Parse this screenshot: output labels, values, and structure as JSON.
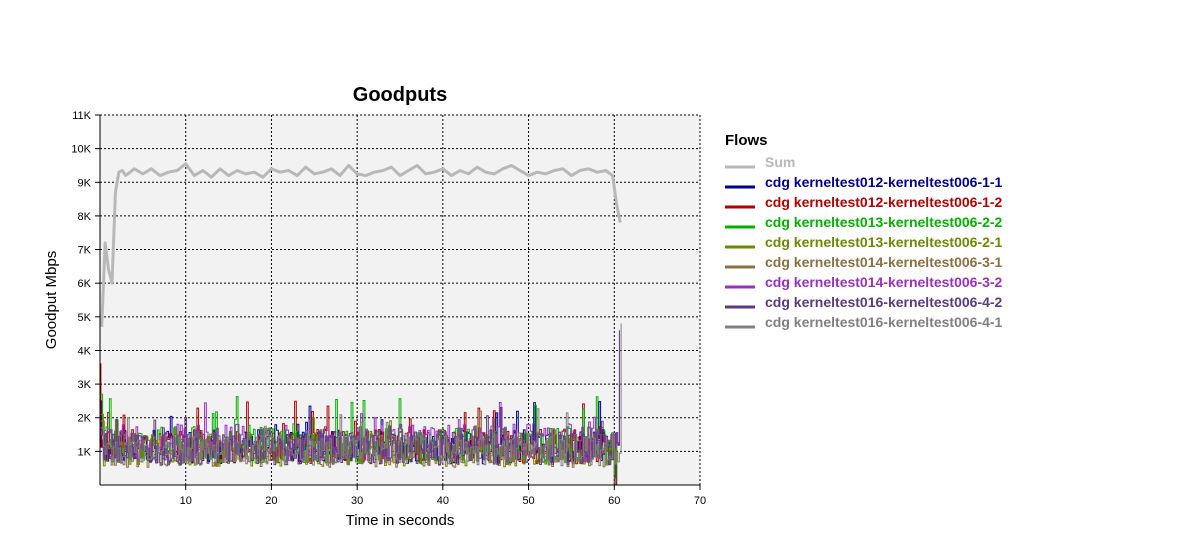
{
  "chart_data": {
    "type": "line",
    "title": "Goodputs",
    "xlabel": "Time in seconds",
    "ylabel": "Goodput Mbps",
    "xlim": [
      0,
      70
    ],
    "ylim": [
      0,
      11000
    ],
    "x_ticks": [
      10,
      20,
      30,
      40,
      50,
      60,
      70
    ],
    "x_tick_labels": [
      "10",
      "20",
      "30",
      "40",
      "50",
      "60",
      "70"
    ],
    "y_ticks": [
      1000,
      2000,
      3000,
      4000,
      5000,
      6000,
      7000,
      8000,
      9000,
      10000,
      11000
    ],
    "y_tick_labels": [
      "1K",
      "2K",
      "3K",
      "4K",
      "5K",
      "6K",
      "7K",
      "8K",
      "9K",
      "10K",
      "11K"
    ],
    "grid": true,
    "legend_title": "Flows",
    "legend_position": "right",
    "series": [
      {
        "name": "Sum",
        "color": "#b8b8b8",
        "x": [
          0.2,
          0.6,
          1.0,
          1.4,
          1.8,
          2.2,
          2.6,
          3.0,
          4.0,
          5.0,
          6.0,
          7.0,
          8.0,
          9.0,
          10.0,
          11.0,
          12.0,
          13.0,
          14.0,
          15.0,
          16.0,
          17.0,
          18.0,
          19.0,
          20.0,
          21.0,
          22.0,
          23.0,
          24.0,
          25.0,
          26.0,
          27.0,
          28.0,
          29.0,
          30.0,
          31.0,
          32.0,
          33.0,
          34.0,
          35.0,
          36.0,
          37.0,
          38.0,
          39.0,
          40.0,
          41.0,
          42.0,
          43.0,
          44.0,
          45.0,
          46.0,
          47.0,
          48.0,
          49.0,
          50.0,
          51.0,
          52.0,
          53.0,
          54.0,
          55.0,
          56.0,
          57.0,
          58.0,
          59.0,
          59.8,
          60.3,
          60.7
        ],
        "y": [
          4700,
          7200,
          6400,
          6000,
          8700,
          9300,
          9350,
          9200,
          9400,
          9250,
          9400,
          9200,
          9300,
          9350,
          9550,
          9200,
          9350,
          9150,
          9400,
          9200,
          9350,
          9250,
          9300,
          9150,
          9400,
          9300,
          9350,
          9200,
          9450,
          9250,
          9300,
          9400,
          9200,
          9500,
          9250,
          9200,
          9300,
          9350,
          9450,
          9200,
          9350,
          9500,
          9250,
          9300,
          9400,
          9200,
          9350,
          9250,
          9450,
          9300,
          9250,
          9400,
          9500,
          9350,
          9200,
          9300,
          9250,
          9350,
          9400,
          9200,
          9350,
          9400,
          9300,
          9350,
          9200,
          8300,
          7800
        ]
      },
      {
        "name": "cdg kerneltest012-kerneltest006-1-1",
        "color": "#000090",
        "start": [
          0.2,
          2500
        ],
        "base": 1150,
        "amp": 520,
        "end": [
          60.2,
          0
        ]
      },
      {
        "name": "cdg kerneltest012-kerneltest006-1-2",
        "color": "#b00000",
        "start": [
          0.1,
          3600
        ],
        "base": 1150,
        "amp": 520,
        "end": [
          60.0,
          0
        ]
      },
      {
        "name": "cdg kerneltest013-kerneltest006-2-2",
        "color": "#00b000",
        "start": [
          0.3,
          2700
        ],
        "base": 1180,
        "amp": 560,
        "end": [
          60.1,
          200
        ]
      },
      {
        "name": "cdg kerneltest013-kerneltest006-2-1",
        "color": "#6a8a00",
        "start": [
          0.4,
          2100
        ],
        "base": 1050,
        "amp": 500,
        "end": [
          60.3,
          0
        ]
      },
      {
        "name": "cdg kerneltest014-kerneltest006-3-1",
        "color": "#8a7040",
        "start": [
          0.5,
          1900
        ],
        "base": 1000,
        "amp": 480,
        "end": [
          60.0,
          300
        ]
      },
      {
        "name": "cdg kerneltest014-kerneltest006-3-2",
        "color": "#9a30c0",
        "start": [
          0.2,
          1500
        ],
        "base": 1250,
        "amp": 560,
        "end": [
          60.6,
          3000
        ]
      },
      {
        "name": "cdg kerneltest016-kerneltest006-4-2",
        "color": "#5a3a80",
        "start": [
          0.3,
          1600
        ],
        "base": 1100,
        "amp": 500,
        "end": [
          60.6,
          4600
        ]
      },
      {
        "name": "cdg kerneltest016-kerneltest006-4-1",
        "color": "#808080",
        "start": [
          0.4,
          1700
        ],
        "base": 1050,
        "amp": 480,
        "end": [
          60.8,
          4800
        ]
      }
    ]
  }
}
